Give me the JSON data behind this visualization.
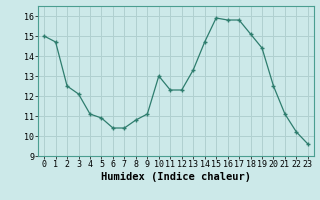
{
  "x": [
    0,
    1,
    2,
    3,
    4,
    5,
    6,
    7,
    8,
    9,
    10,
    11,
    12,
    13,
    14,
    15,
    16,
    17,
    18,
    19,
    20,
    21,
    22,
    23
  ],
  "y": [
    15.0,
    14.7,
    12.5,
    12.1,
    11.1,
    10.9,
    10.4,
    10.4,
    10.8,
    11.1,
    13.0,
    12.3,
    12.3,
    13.3,
    14.7,
    15.9,
    15.8,
    15.8,
    15.1,
    14.4,
    12.5,
    11.1,
    10.2,
    9.6
  ],
  "xlabel": "Humidex (Indice chaleur)",
  "xlim": [
    -0.5,
    23.5
  ],
  "ylim": [
    9,
    16.5
  ],
  "yticks": [
    9,
    10,
    11,
    12,
    13,
    14,
    15,
    16
  ],
  "xticks": [
    0,
    1,
    2,
    3,
    4,
    5,
    6,
    7,
    8,
    9,
    10,
    11,
    12,
    13,
    14,
    15,
    16,
    17,
    18,
    19,
    20,
    21,
    22,
    23
  ],
  "line_color": "#2e7d6e",
  "marker": "+",
  "bg_color": "#cce9e9",
  "grid_color": "#b0d0d0",
  "tick_label_fontsize": 6,
  "xlabel_fontsize": 7.5,
  "xlabel_fontweight": "bold",
  "markersize": 3.5,
  "linewidth": 0.9
}
